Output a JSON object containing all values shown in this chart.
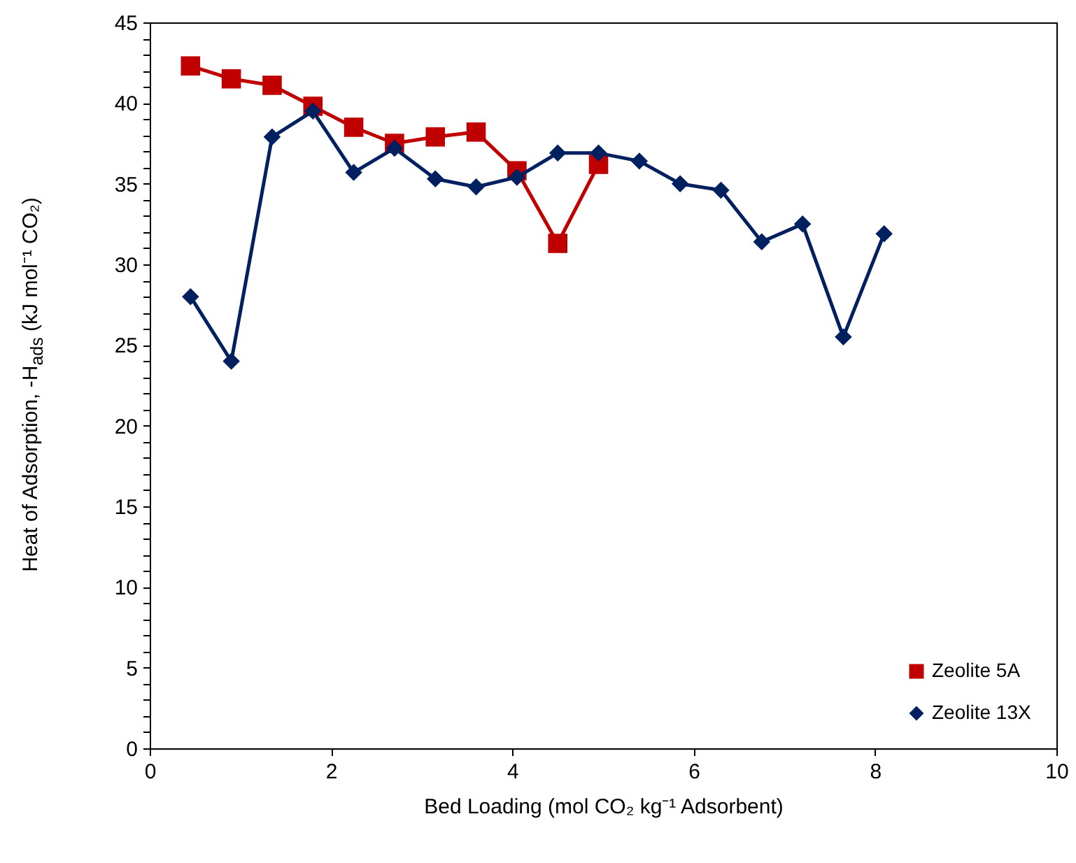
{
  "chart_data": {
    "type": "line",
    "xlabel": "Bed Loading (mol CO₂ kg⁻¹ Adsorbent)",
    "ylabel": "Heat of Adsorption, -H$_{ads}$ (kJ mol⁻¹ CO₂)",
    "xlim": [
      0,
      10
    ],
    "xticks": [
      0,
      2,
      4,
      6,
      8,
      10
    ],
    "ylim": [
      0,
      45
    ],
    "yticks": [
      0,
      {
        "value": 1,
        "label": null
      },
      {
        "value": 2,
        "label": null
      },
      {
        "value": 3,
        "label": null
      },
      {
        "value": 4,
        "label": null
      },
      5,
      {
        "value": 6,
        "label": null
      },
      {
        "value": 7,
        "label": null
      },
      {
        "value": 8,
        "label": null
      },
      {
        "value": 9,
        "label": null
      },
      10,
      {
        "value": 11,
        "label": null
      },
      {
        "value": 12,
        "label": null
      },
      {
        "value": 13,
        "label": null
      },
      {
        "value": 14,
        "label": null
      },
      15,
      {
        "value": 16,
        "label": null
      },
      {
        "value": 17,
        "label": null
      },
      {
        "value": 18,
        "label": null
      },
      {
        "value": 19,
        "label": null
      },
      20,
      {
        "value": 21,
        "label": null
      },
      {
        "value": 22,
        "label": null
      },
      {
        "value": 23,
        "label": null
      },
      {
        "value": 24,
        "label": null
      },
      25,
      {
        "value": 26,
        "label": null
      },
      {
        "value": 27,
        "label": null
      },
      {
        "value": 28,
        "label": null
      },
      {
        "value": 29,
        "label": null
      },
      30,
      {
        "value": 31,
        "label": null
      },
      {
        "value": 32,
        "label": null
      },
      {
        "value": 33,
        "label": null
      },
      {
        "value": 34,
        "label": null
      },
      35,
      {
        "value": 36,
        "label": null
      },
      {
        "value": 37,
        "label": null
      },
      {
        "value": 38,
        "label": null
      },
      {
        "value": 39,
        "label": null
      },
      40,
      {
        "value": 41,
        "label": null
      },
      {
        "value": 42,
        "label": null
      },
      {
        "value": 43,
        "label": null
      },
      {
        "value": 44,
        "label": null
      },
      45
    ],
    "grid": false,
    "legend": "bottom right",
    "series": [
      {
        "name": "Zeolite 5A",
        "color": "#c00000",
        "marker": "square",
        "x": [
          0.45,
          0.9,
          1.35,
          1.8,
          2.25,
          2.7,
          3.15,
          3.6,
          4.05,
          4.5,
          4.95
        ],
        "values": [
          42.3,
          41.5,
          41.1,
          39.8,
          38.5,
          37.5,
          37.9,
          38.2,
          35.8,
          31.3,
          36.2
        ]
      },
      {
        "name": "Zeolite 13X",
        "color": "#002060",
        "marker": "diamond",
        "x": [
          0.45,
          0.9,
          1.35,
          1.8,
          2.25,
          2.7,
          3.15,
          3.6,
          4.05,
          4.5,
          4.95,
          5.4,
          5.85,
          6.3,
          6.75,
          7.2,
          7.65,
          8.1
        ],
        "values": [
          28.0,
          24.0,
          37.9,
          39.5,
          35.7,
          37.2,
          35.3,
          34.8,
          35.4,
          36.9,
          36.9,
          36.4,
          35.0,
          34.6,
          31.4,
          32.5,
          25.5,
          31.9
        ]
      }
    ]
  }
}
